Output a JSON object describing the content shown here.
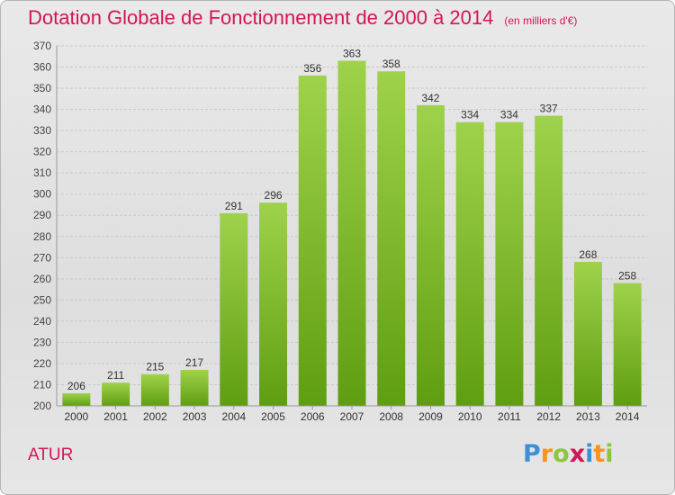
{
  "title": "Dotation Globale de Fonctionnement de 2000 à 2014",
  "subtitle": "(en milliers d'€)",
  "place": "ATUR",
  "logo": {
    "text": "Proxiti",
    "letters": [
      "P",
      "r",
      "o",
      "x",
      "i",
      "t",
      "i"
    ],
    "colors": [
      "#3d8fd6",
      "#f7941d",
      "#8cc63f",
      "#d4145a",
      "#3d8fd6",
      "#f7941d",
      "#8cc63f"
    ]
  },
  "colors": {
    "bar_top": "#9fd24c",
    "bar_bottom": "#5f9e10",
    "text_accent": "#d4145a"
  },
  "chart_data": {
    "type": "bar",
    "categories": [
      "2000",
      "2001",
      "2002",
      "2003",
      "2004",
      "2005",
      "2006",
      "2007",
      "2008",
      "2009",
      "2010",
      "2011",
      "2012",
      "2013",
      "2014"
    ],
    "values": [
      206,
      211,
      215,
      217,
      291,
      296,
      356,
      363,
      358,
      342,
      334,
      334,
      337,
      268,
      258
    ],
    "ylim": [
      200,
      370
    ],
    "yticks": [
      200,
      210,
      220,
      230,
      240,
      250,
      260,
      270,
      280,
      290,
      300,
      310,
      320,
      330,
      340,
      350,
      360,
      370
    ],
    "grid": true,
    "title": "Dotation Globale de Fonctionnement de 2000 à 2014",
    "subtitle": "(en milliers d'€)"
  }
}
